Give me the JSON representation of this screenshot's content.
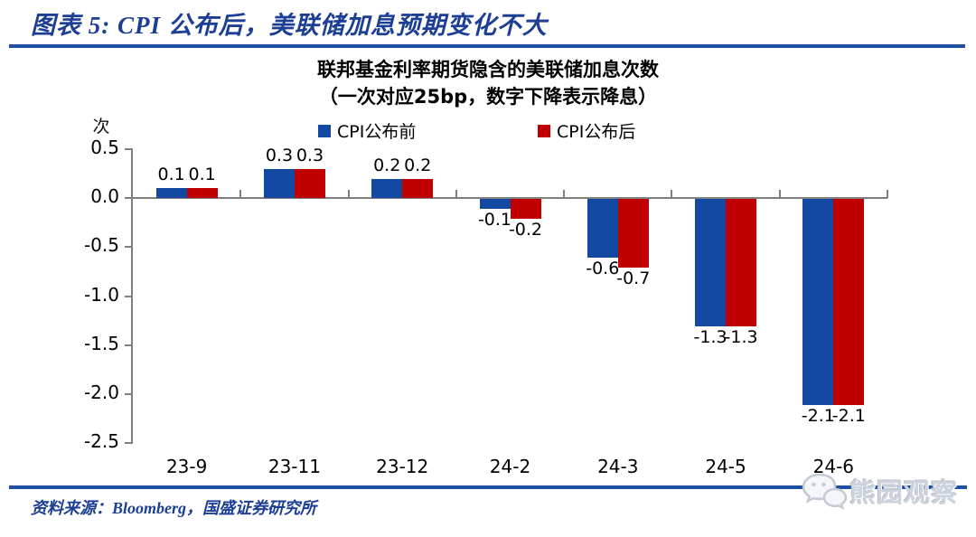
{
  "header": {
    "title": "图表 5:  CPI 公布后，美联储加息预期变化不大"
  },
  "chart_data": {
    "type": "bar",
    "title_line1": "联邦基金利率期货隐含的美联储加息次数",
    "title_line2": "（一次对应25bp，数字下降表示降息）",
    "unit_label": "次",
    "categories": [
      "23-9",
      "23-11",
      "23-12",
      "24-2",
      "24-3",
      "24-5",
      "24-6"
    ],
    "series": [
      {
        "name": "CPI公布前",
        "color": "#1349a2",
        "values": [
          0.1,
          0.3,
          0.2,
          -0.1,
          -0.6,
          -1.3,
          -2.1
        ]
      },
      {
        "name": "CPI公布后",
        "color": "#c00000",
        "values": [
          0.1,
          0.3,
          0.2,
          -0.2,
          -0.7,
          -1.3,
          -2.1
        ]
      }
    ],
    "ylim": [
      -2.5,
      0.5
    ],
    "ytick_step": 0.5,
    "yticks": [
      "0.5",
      "0.0",
      "-0.5",
      "-1.0",
      "-1.5",
      "-2.0",
      "-2.5"
    ],
    "legend_position": "top",
    "grid": false
  },
  "footer": {
    "source": "资料来源：Bloomberg，国盛证券研究所",
    "watermark": "熊园观察",
    "watermark_icon": "wechat-chat-bubbles-icon"
  },
  "colors": {
    "header_text": "#1c3e94",
    "rule_blue": "#1d4fa1",
    "bar_blue": "#1349a2",
    "bar_red": "#c00000",
    "axis_gray": "#7f7f7f",
    "watermark_gray": "#cdd3dd"
  }
}
